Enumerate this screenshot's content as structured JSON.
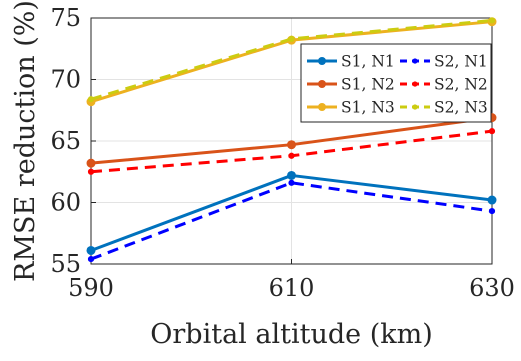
{
  "chart_data": {
    "type": "line",
    "title": "",
    "xlabel": "Orbital altitude (km)",
    "ylabel": "RMSE reduction (%)",
    "x": [
      590,
      610,
      630
    ],
    "xlim": [
      590,
      630
    ],
    "ylim": [
      55,
      75
    ],
    "xticks": [
      "590",
      "610",
      "630"
    ],
    "yticks": [
      "55",
      "60",
      "65",
      "70",
      "75"
    ],
    "grid": true,
    "legend_position": "top-right",
    "series": [
      {
        "name": "S1, N1",
        "values": [
          56.1,
          62.2,
          60.2
        ],
        "color": "#0072BD",
        "style": "solid",
        "marker": "circle"
      },
      {
        "name": "S1, N2",
        "values": [
          63.2,
          64.7,
          66.9
        ],
        "color": "#D95319",
        "style": "solid",
        "marker": "circle"
      },
      {
        "name": "S1, N3",
        "values": [
          68.2,
          73.2,
          74.7
        ],
        "color": "#EDB120",
        "style": "solid",
        "marker": "circle"
      },
      {
        "name": "S2, N1",
        "values": [
          55.4,
          61.6,
          59.3
        ],
        "color": "#0000FF",
        "style": "dashed",
        "marker": "dot"
      },
      {
        "name": "S2, N2",
        "values": [
          62.5,
          63.8,
          65.8
        ],
        "color": "#FF0000",
        "style": "dashed",
        "marker": "dot"
      },
      {
        "name": "S2, N3",
        "values": [
          68.4,
          73.3,
          74.8
        ],
        "color": "#CCCC11",
        "style": "dashed",
        "marker": "dot"
      }
    ],
    "legend_order": [
      0,
      3,
      1,
      4,
      2,
      5
    ]
  }
}
